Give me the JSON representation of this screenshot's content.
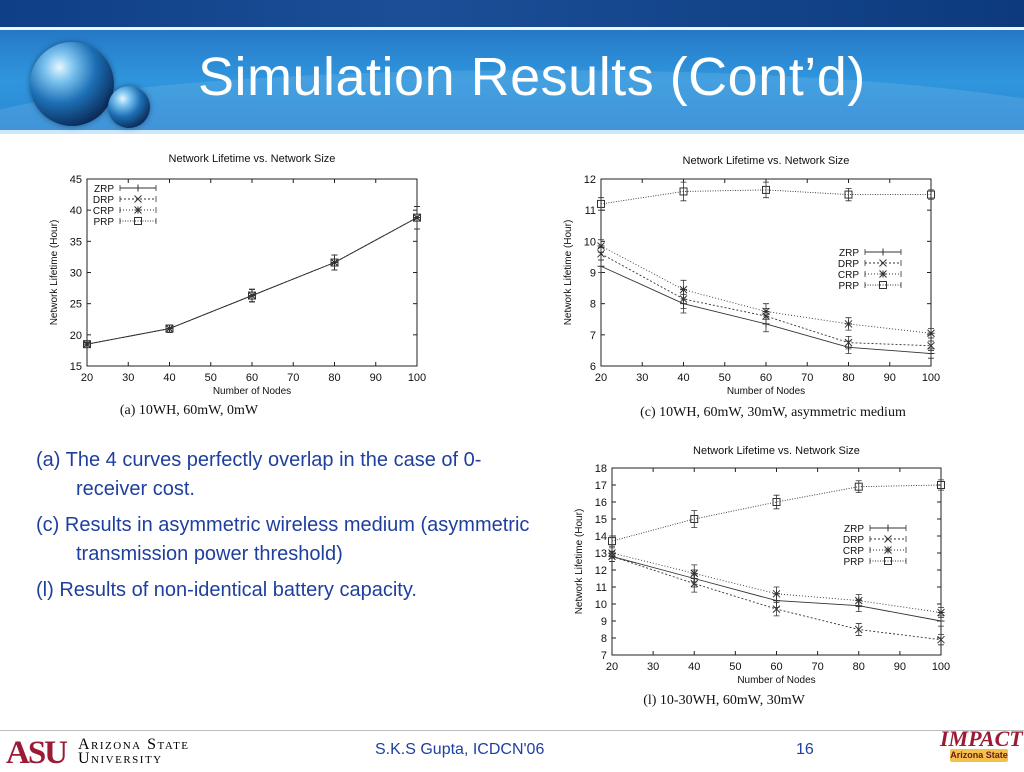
{
  "slide": {
    "title": "Simulation Results (Cont’d)",
    "footer_text": "S.K.S Gupta, ICDCN'06",
    "page_number": "16",
    "asu_logo": "ASU",
    "asu_name_line1": "Arizona State",
    "asu_name_line2": "University",
    "impact_word": "IMPACT",
    "impact_sub": "Arizona State"
  },
  "bullets": [
    "(a) The 4 curves perfectly overlap in the case of 0-receiver cost.",
    "(c) Results in asymmetric wireless medium (asymmetric transmission power threshold)",
    "(l) Results of non-identical battery capacity."
  ],
  "chart_data": [
    {
      "id": "a",
      "type": "line",
      "title": "Network Lifetime vs. Network Size",
      "caption": "(a)  10WH,  60mW,  0mW",
      "xlabel": "Number of Nodes",
      "ylabel": "Network Lifetime (Hour)",
      "xlim": [
        20,
        100
      ],
      "ylim": [
        15,
        45
      ],
      "xticks": [
        20,
        30,
        40,
        50,
        60,
        70,
        80,
        90,
        100
      ],
      "yticks": [
        15,
        20,
        25,
        30,
        35,
        40,
        45
      ],
      "legend_position": "top-left",
      "x": [
        20,
        40,
        60,
        80,
        100
      ],
      "series": [
        {
          "name": "ZRP",
          "marker": "plus",
          "values": [
            18.5,
            21.0,
            26.3,
            31.6,
            38.8
          ]
        },
        {
          "name": "DRP",
          "marker": "x",
          "values": [
            18.5,
            21.0,
            26.3,
            31.6,
            38.8
          ]
        },
        {
          "name": "CRP",
          "marker": "star",
          "values": [
            18.5,
            21.0,
            26.3,
            31.6,
            38.8
          ]
        },
        {
          "name": "PRP",
          "marker": "square",
          "values": [
            18.5,
            21.0,
            26.3,
            31.6,
            38.8
          ]
        }
      ],
      "error": [
        0.3,
        0.6,
        1.0,
        1.2,
        1.8
      ]
    },
    {
      "id": "c",
      "type": "line",
      "title": "Network Lifetime vs. Network Size",
      "caption": "(c)  10WH,  60mW,  30mW,  asymmetric  medium",
      "xlabel": "Number of Nodes",
      "ylabel": "Network Lifetime (Hour)",
      "xlim": [
        20,
        100
      ],
      "ylim": [
        6,
        12
      ],
      "xticks": [
        20,
        30,
        40,
        50,
        60,
        70,
        80,
        90,
        100
      ],
      "yticks": [
        6,
        7,
        8,
        9,
        10,
        11,
        12
      ],
      "legend_position": "right",
      "x": [
        20,
        40,
        60,
        80,
        100
      ],
      "series": [
        {
          "name": "ZRP",
          "marker": "plus",
          "values": [
            9.2,
            8.0,
            7.35,
            6.6,
            6.4
          ]
        },
        {
          "name": "DRP",
          "marker": "x",
          "values": [
            9.6,
            8.15,
            7.6,
            6.75,
            6.65
          ]
        },
        {
          "name": "CRP",
          "marker": "star",
          "values": [
            9.85,
            8.45,
            7.75,
            7.35,
            7.05
          ]
        },
        {
          "name": "PRP",
          "marker": "square",
          "values": [
            11.2,
            11.6,
            11.65,
            11.5,
            11.5
          ]
        }
      ],
      "error": [
        0.2,
        0.3,
        0.25,
        0.2,
        0.15
      ]
    },
    {
      "id": "l",
      "type": "line",
      "title": "Network Lifetime vs. Network Size",
      "caption": "(l)  10-30WH,  60mW,  30mW",
      "xlabel": "Number of Nodes",
      "ylabel": "Network Lifetime (Hour)",
      "xlim": [
        20,
        100
      ],
      "ylim": [
        7,
        18
      ],
      "xticks": [
        20,
        30,
        40,
        50,
        60,
        70,
        80,
        90,
        100
      ],
      "yticks": [
        7,
        8,
        9,
        10,
        11,
        12,
        13,
        14,
        15,
        16,
        17,
        18
      ],
      "legend_position": "right",
      "x": [
        20,
        40,
        60,
        80,
        100
      ],
      "series": [
        {
          "name": "ZRP",
          "marker": "plus",
          "values": [
            12.8,
            11.5,
            10.2,
            9.9,
            9.0
          ]
        },
        {
          "name": "DRP",
          "marker": "x",
          "values": [
            12.8,
            11.2,
            9.7,
            8.5,
            7.9
          ]
        },
        {
          "name": "CRP",
          "marker": "star",
          "values": [
            13.0,
            11.8,
            10.6,
            10.2,
            9.5
          ]
        },
        {
          "name": "PRP",
          "marker": "square",
          "values": [
            13.7,
            15.0,
            16.0,
            16.9,
            17.0
          ]
        }
      ],
      "error": [
        0.3,
        0.5,
        0.4,
        0.35,
        0.3
      ]
    }
  ]
}
